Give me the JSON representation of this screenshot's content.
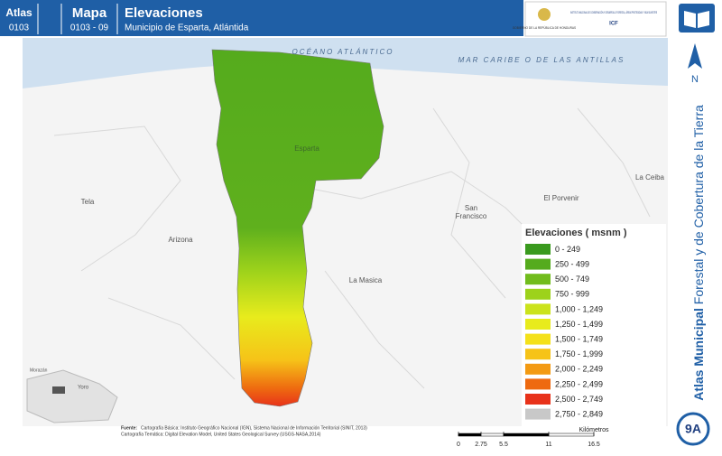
{
  "header": {
    "atlas_label": "Atlas",
    "atlas_code": "0103",
    "map_label": "Mapa",
    "map_code": "0103 - 09",
    "title": "Elevaciones",
    "subtitle": "Municipio de Esparta, Atlántida",
    "logo_left": "GOBIERNO DE LA REPÚBLICA DE HONDURAS",
    "logo_right": "INSTITUTO NACIONAL DE CONSERVACIÓN Y DESARROLLO FORESTAL, ÁREAS PROTEGIDAS Y VIDA SILVESTRE",
    "logo_right_code": "ICF"
  },
  "map_labels": {
    "ocean": "OCÉANO ATLÁNTICO",
    "sea": "MAR CARIBE O DE LAS ANTILLAS",
    "esparta": "Esparta",
    "tela": "Tela",
    "arizona": "Arizona",
    "la_masica": "La Masica",
    "san_francisco_1": "San",
    "san_francisco_2": "Francisco",
    "el_porvenir": "El Porvenir",
    "la_ceiba": "La Ceiba",
    "yoro": "Yoro",
    "morazan": "Morazán"
  },
  "legend": {
    "title": "Elevaciones ( msnm )",
    "items": [
      {
        "label": "0 - 249",
        "color": "#3a9a1e"
      },
      {
        "label": "250 - 499",
        "color": "#55ab1d"
      },
      {
        "label": "500 - 749",
        "color": "#71bc1c"
      },
      {
        "label": "750 - 999",
        "color": "#9dd21b"
      },
      {
        "label": "1,000 - 1,249",
        "color": "#cbe31c"
      },
      {
        "label": "1,250 - 1,499",
        "color": "#e8eb1c"
      },
      {
        "label": "1,500 - 1,749",
        "color": "#f4e11a"
      },
      {
        "label": "1,750 - 1,999",
        "color": "#f6c318"
      },
      {
        "label": "2,000 - 2,249",
        "color": "#f39a12"
      },
      {
        "label": "2,250 - 2,499",
        "color": "#ee6a10"
      },
      {
        "label": "2,500 - 2,749",
        "color": "#e8321a"
      },
      {
        "label": "2,750 - 2,849",
        "color": "#c8c8c8"
      }
    ]
  },
  "source": {
    "label": "Fuente:",
    "line1": "Cartografía Básica: Instituto Geográfico Nacional (IGN), Sistema Nacional de Información Territorial (SINIT, 2013)",
    "line2": "Cartografía Temática: Digital Elevation Model, United States Geological Survey (USGS-NASA,2014)"
  },
  "scale": {
    "unit": "Kilómetros",
    "ticks": [
      0,
      2.75,
      5.5,
      11,
      16.5
    ]
  },
  "side": {
    "north": "N",
    "series_bold": "Atlas Municipal",
    "series_rest": "Forestal y de Cobertura de la Tierra",
    "sheet": "9A"
  }
}
